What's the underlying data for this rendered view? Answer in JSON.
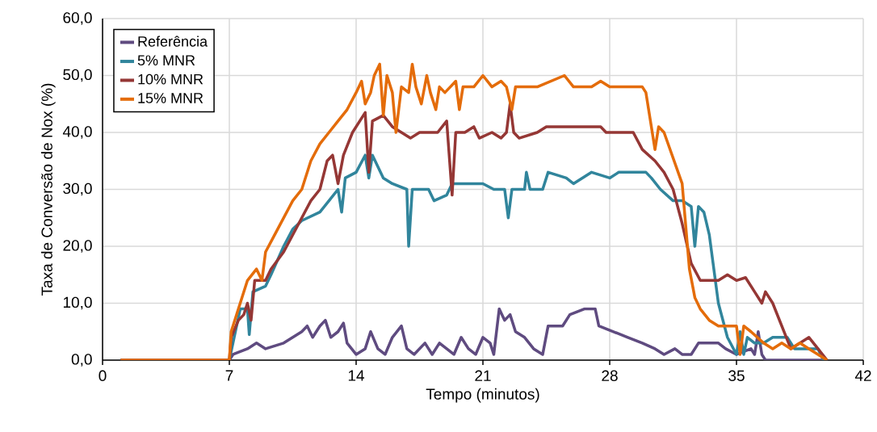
{
  "chart_data": {
    "type": "line",
    "xlabel": "Tempo (minutos)",
    "ylabel": "Taxa de Conversão de Nox (%)",
    "xlim": [
      0,
      42
    ],
    "xticks": [
      0,
      7,
      14,
      21,
      28,
      35,
      42
    ],
    "ylim": [
      0,
      60
    ],
    "yticks": [
      {
        "value": 0,
        "label": "0,0"
      },
      {
        "value": 10,
        "label": "10,0"
      },
      {
        "value": 20,
        "label": "20,0"
      },
      {
        "value": 30,
        "label": "30,0"
      },
      {
        "value": 40,
        "label": "40,0"
      },
      {
        "value": 50,
        "label": "50,0"
      },
      {
        "value": 60,
        "label": "60,0"
      }
    ],
    "grid": true,
    "legend": "top left",
    "marker": "none",
    "line_style": "solid",
    "series": [
      {
        "name": "Referência",
        "color": "#5f4b80",
        "x": [
          1,
          7,
          7.2,
          8,
          8.5,
          9,
          10,
          10.5,
          11,
          11.3,
          11.6,
          12,
          12.3,
          12.6,
          13,
          13.3,
          13.5,
          14,
          14.5,
          14.8,
          15.2,
          15.6,
          16,
          16.5,
          16.8,
          17.2,
          17.8,
          18.2,
          18.6,
          19,
          19.4,
          19.8,
          20.2,
          20.6,
          21,
          21.4,
          21.6,
          21.9,
          22.2,
          22.5,
          22.8,
          23.3,
          23.8,
          24.3,
          24.6,
          25.4,
          25.8,
          26.6,
          27.2,
          27.4,
          28.2,
          29,
          29.8,
          30.5,
          31,
          31.6,
          32,
          32.5,
          32.9,
          34,
          34.4,
          35,
          35.8,
          36,
          36.2,
          36.4,
          36.6,
          40
        ],
        "values": [
          0,
          0,
          1,
          2,
          3,
          2,
          3,
          4,
          5,
          6,
          4,
          6,
          7,
          4,
          5,
          6.5,
          3,
          1,
          2,
          5,
          2,
          1,
          4,
          6,
          2,
          1,
          3,
          1,
          3,
          2,
          1,
          4,
          2,
          1,
          4,
          3,
          1,
          9,
          7,
          8,
          5,
          4,
          2,
          1,
          6,
          6,
          8,
          9,
          9,
          6,
          5,
          4,
          3,
          2,
          1,
          2,
          1,
          1,
          3,
          3,
          2,
          1,
          2,
          1,
          5,
          1,
          0,
          0
        ]
      },
      {
        "name": "5% MNR",
        "color": "#31859c",
        "x": [
          1,
          7,
          7.1,
          7.6,
          8,
          8.1,
          8.3,
          9,
          9.3,
          10,
          10.5,
          11,
          12,
          12.5,
          13,
          13.2,
          13.4,
          14,
          14.5,
          14.7,
          14.9,
          15.5,
          16,
          16.8,
          16.9,
          17.1,
          18,
          18.3,
          19,
          19.3,
          21,
          21.6,
          22.2,
          22.4,
          22.6,
          23.3,
          23.4,
          23.6,
          24.3,
          24.6,
          25.6,
          26,
          27,
          28,
          28.5,
          30,
          30.3,
          30.8,
          31.5,
          32,
          32.5,
          32.7,
          32.9,
          33.2,
          33.5,
          34,
          34.5,
          35,
          35.2,
          35.4,
          35.6,
          36,
          36.5,
          37,
          37.8,
          38.2,
          39.5,
          39.8
        ],
        "values": [
          0,
          0,
          null,
          9,
          9,
          4.5,
          12,
          13,
          15,
          20,
          23,
          24.5,
          26,
          28,
          30,
          26,
          32,
          33,
          36,
          32,
          36,
          32,
          31,
          30,
          20,
          30,
          30,
          28,
          29,
          31,
          31,
          30,
          30,
          25,
          30,
          30,
          33,
          30,
          30,
          33,
          32,
          31,
          33,
          32,
          33,
          33,
          32,
          30,
          28,
          28,
          27,
          20,
          27,
          26,
          22,
          10,
          4,
          1,
          5,
          1,
          4,
          3,
          3,
          4,
          4,
          2,
          2,
          0
        ]
      },
      {
        "name": "10% MNR",
        "color": "#953735",
        "x": [
          1,
          7,
          7.1,
          7.5,
          7.8,
          8,
          8.2,
          8.4,
          9,
          9.3,
          10,
          10.5,
          11,
          11.5,
          12,
          12.4,
          12.7,
          13,
          13.3,
          13.8,
          14.5,
          14.7,
          14.9,
          15.5,
          16,
          16.5,
          17,
          17.5,
          18.5,
          19,
          19.3,
          19.5,
          20,
          20.5,
          20.8,
          21.5,
          22,
          22.3,
          22.5,
          22.7,
          23,
          24,
          24.5,
          27.5,
          27.8,
          29.3,
          29.8,
          30.5,
          31,
          31.5,
          32,
          32.5,
          33,
          34,
          34.5,
          35,
          35.5,
          36,
          36.4,
          36.6,
          37,
          37.5,
          38,
          38.5,
          39,
          39.5,
          40
        ],
        "values": [
          0,
          0,
          4,
          7,
          8,
          10,
          7,
          14,
          14,
          16,
          19,
          22,
          25,
          28,
          30,
          35,
          36,
          31,
          36,
          40,
          43.5,
          33,
          42,
          43,
          41,
          40,
          39,
          40,
          40,
          42,
          29,
          40,
          40,
          41,
          39,
          40,
          39,
          40,
          45,
          40,
          39,
          40,
          41,
          41,
          40,
          40,
          37,
          35,
          33,
          30,
          24,
          17,
          14,
          14,
          15,
          14,
          14.5,
          12,
          10,
          12,
          10,
          6,
          2,
          3,
          4,
          2,
          0
        ]
      },
      {
        "name": "15% MNR",
        "color": "#e46c0a",
        "x": [
          1,
          7,
          7.1,
          7.5,
          8,
          8.5,
          8.8,
          9,
          9.5,
          10,
          10.5,
          11,
          11.5,
          12,
          12.5,
          13,
          13.5,
          14,
          14.3,
          14.5,
          14.8,
          15,
          15.3,
          15.5,
          15.7,
          16,
          16.2,
          16.5,
          16.9,
          17.1,
          17.3,
          17.6,
          17.9,
          18.1,
          18.4,
          18.6,
          18.9,
          19.2,
          19.5,
          19.7,
          19.9,
          20.5,
          21,
          21.5,
          22,
          22.3,
          22.6,
          22.8,
          24,
          25.5,
          26,
          27,
          27.5,
          28,
          29.8,
          30,
          30.3,
          30.5,
          30.7,
          31,
          32,
          32.4,
          32.7,
          33,
          33.5,
          34,
          35,
          35.2,
          35.4,
          35.8,
          36.5,
          37,
          37.5,
          38,
          38.5,
          39,
          39.5,
          40
        ],
        "values": [
          0,
          0,
          5,
          9,
          14,
          16,
          14,
          19,
          22,
          25,
          28,
          30,
          35,
          38,
          40,
          42,
          44,
          47,
          49,
          45,
          47,
          50,
          52,
          43,
          50,
          47,
          40,
          48,
          47,
          52,
          48,
          45,
          50,
          47,
          44,
          48,
          47,
          48,
          49,
          44,
          48,
          48,
          50,
          48,
          49,
          48,
          44,
          48,
          48,
          50,
          48,
          48,
          49,
          48,
          48,
          47,
          41,
          37,
          41,
          40,
          31,
          16,
          11,
          9,
          7,
          6,
          6,
          1,
          6,
          5,
          3,
          2,
          3,
          2,
          3,
          2,
          1,
          0
        ]
      }
    ]
  }
}
